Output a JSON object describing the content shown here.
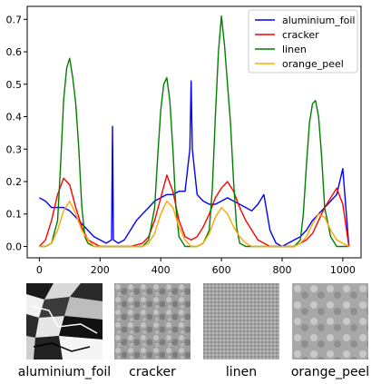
{
  "chart_data": {
    "type": "line",
    "title": "",
    "xlabel": "",
    "ylabel": "",
    "xlim": [
      -40,
      1060
    ],
    "ylim": [
      -0.035,
      0.74
    ],
    "xticks": [
      0,
      200,
      400,
      600,
      800,
      1000
    ],
    "yticks": [
      0.0,
      0.1,
      0.2,
      0.3,
      0.4,
      0.5,
      0.6,
      0.7
    ],
    "xtick_labels": [
      "0",
      "200",
      "400",
      "600",
      "800",
      "1000"
    ],
    "ytick_labels": [
      "0.0",
      "0.1",
      "0.2",
      "0.3",
      "0.4",
      "0.5",
      "0.6",
      "0.7"
    ],
    "legend_position": "top-right",
    "series": [
      {
        "name": "aluminium_foil",
        "color": "#0000ff",
        "x": [
          0,
          20,
          40,
          60,
          80,
          100,
          120,
          140,
          160,
          180,
          200,
          220,
          238,
          241,
          244,
          260,
          280,
          300,
          320,
          340,
          360,
          380,
          400,
          420,
          440,
          460,
          480,
          496,
          500,
          504,
          520,
          540,
          560,
          580,
          600,
          620,
          640,
          660,
          680,
          700,
          720,
          740,
          760,
          780,
          800,
          820,
          840,
          860,
          880,
          900,
          920,
          940,
          960,
          980,
          1000,
          1020
        ],
        "values": [
          0.15,
          0.14,
          0.12,
          0.12,
          0.12,
          0.11,
          0.09,
          0.07,
          0.05,
          0.03,
          0.02,
          0.01,
          0.02,
          0.37,
          0.02,
          0.01,
          0.02,
          0.05,
          0.08,
          0.1,
          0.12,
          0.14,
          0.15,
          0.16,
          0.16,
          0.17,
          0.17,
          0.3,
          0.51,
          0.3,
          0.16,
          0.14,
          0.13,
          0.13,
          0.14,
          0.15,
          0.14,
          0.13,
          0.12,
          0.11,
          0.13,
          0.16,
          0.05,
          0.01,
          0.0,
          0.01,
          0.02,
          0.03,
          0.05,
          0.08,
          0.1,
          0.12,
          0.14,
          0.16,
          0.24,
          0.0
        ]
      },
      {
        "name": "cracker",
        "color": "#ff0000",
        "x": [
          0,
          20,
          40,
          60,
          80,
          100,
          120,
          140,
          160,
          180,
          200,
          250,
          300,
          340,
          360,
          380,
          400,
          420,
          440,
          460,
          480,
          500,
          520,
          540,
          560,
          580,
          600,
          620,
          640,
          660,
          680,
          700,
          720,
          760,
          800,
          840,
          860,
          880,
          900,
          920,
          940,
          960,
          980,
          1000,
          1020
        ],
        "values": [
          0.0,
          0.02,
          0.08,
          0.16,
          0.21,
          0.19,
          0.12,
          0.06,
          0.02,
          0.01,
          0.0,
          0.0,
          0.0,
          0.01,
          0.03,
          0.08,
          0.15,
          0.22,
          0.17,
          0.08,
          0.03,
          0.02,
          0.03,
          0.06,
          0.1,
          0.15,
          0.18,
          0.2,
          0.17,
          0.12,
          0.08,
          0.05,
          0.02,
          0.0,
          0.0,
          0.0,
          0.01,
          0.02,
          0.04,
          0.08,
          0.12,
          0.15,
          0.18,
          0.13,
          0.0
        ]
      },
      {
        "name": "linen",
        "color": "#008000",
        "x": [
          0,
          20,
          40,
          60,
          70,
          80,
          90,
          100,
          110,
          120,
          130,
          140,
          150,
          160,
          180,
          200,
          250,
          300,
          340,
          360,
          380,
          390,
          400,
          410,
          420,
          430,
          440,
          450,
          460,
          480,
          500,
          520,
          540,
          560,
          570,
          580,
          590,
          600,
          610,
          620,
          630,
          640,
          650,
          660,
          680,
          700,
          750,
          800,
          840,
          860,
          870,
          880,
          890,
          900,
          910,
          920,
          930,
          940,
          960,
          980,
          1000,
          1020
        ],
        "values": [
          0.0,
          0.0,
          0.01,
          0.08,
          0.25,
          0.45,
          0.55,
          0.58,
          0.52,
          0.44,
          0.3,
          0.12,
          0.03,
          0.01,
          0.0,
          0.0,
          0.0,
          0.0,
          0.0,
          0.02,
          0.12,
          0.28,
          0.42,
          0.5,
          0.52,
          0.45,
          0.3,
          0.12,
          0.03,
          0.0,
          0.0,
          0.0,
          0.01,
          0.05,
          0.18,
          0.4,
          0.6,
          0.71,
          0.62,
          0.5,
          0.38,
          0.2,
          0.06,
          0.01,
          0.0,
          0.0,
          0.0,
          0.0,
          0.0,
          0.02,
          0.1,
          0.25,
          0.38,
          0.44,
          0.45,
          0.4,
          0.28,
          0.12,
          0.03,
          0.0,
          0.0,
          0.0
        ]
      },
      {
        "name": "orange_peel",
        "color": "#ffa500",
        "x": [
          0,
          20,
          40,
          60,
          80,
          100,
          120,
          140,
          160,
          180,
          200,
          250,
          300,
          340,
          360,
          380,
          400,
          420,
          440,
          460,
          480,
          500,
          520,
          540,
          560,
          580,
          600,
          620,
          640,
          660,
          680,
          700,
          720,
          760,
          800,
          840,
          860,
          880,
          900,
          920,
          940,
          960,
          980,
          1000,
          1020
        ],
        "values": [
          0.0,
          0.0,
          0.01,
          0.05,
          0.11,
          0.14,
          0.1,
          0.05,
          0.02,
          0.0,
          0.0,
          0.0,
          0.0,
          0.0,
          0.01,
          0.04,
          0.1,
          0.14,
          0.12,
          0.06,
          0.02,
          0.0,
          0.0,
          0.01,
          0.04,
          0.09,
          0.12,
          0.1,
          0.06,
          0.03,
          0.01,
          0.0,
          0.0,
          0.0,
          0.0,
          0.0,
          0.01,
          0.03,
          0.07,
          0.1,
          0.09,
          0.05,
          0.02,
          0.01,
          0.0
        ]
      }
    ]
  },
  "samples": [
    {
      "label": "aluminium_foil",
      "texture": "foil-crumpled"
    },
    {
      "label": "cracker",
      "texture": "cracker-bumpy"
    },
    {
      "label": "linen",
      "texture": "linen-weave"
    },
    {
      "label": "orange_peel",
      "texture": "orange-peel-dimpled"
    }
  ]
}
